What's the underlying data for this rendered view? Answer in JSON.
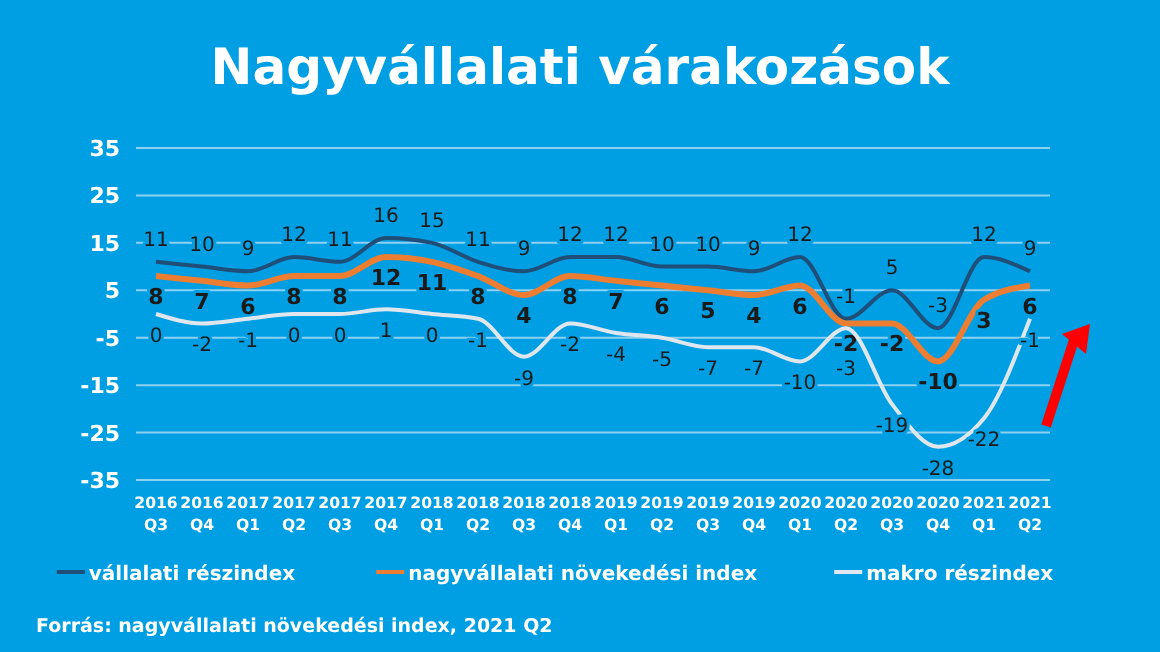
{
  "chart_data": {
    "type": "line",
    "title": "Nagyvállalati várakozások",
    "categories": [
      "2016\nQ3",
      "2016\nQ4",
      "2017\nQ1",
      "2017\nQ2",
      "2017\nQ3",
      "2017\nQ4",
      "2018\nQ1",
      "2018\nQ2",
      "2018\nQ3",
      "2018\nQ4",
      "2019\nQ1",
      "2019\nQ2",
      "2019\nQ3",
      "2019\nQ4",
      "2020\nQ1",
      "2020\nQ2",
      "2020\nQ3",
      "2020\nQ4",
      "2021\nQ1",
      "2021\nQ2"
    ],
    "series": [
      {
        "name": "vállalati részindex",
        "color": "#1f4e79",
        "values": [
          11,
          10,
          9,
          12,
          11,
          16,
          15,
          11,
          9,
          12,
          12,
          10,
          10,
          9,
          12,
          -1,
          5,
          -3,
          12,
          9
        ]
      },
      {
        "name": "nagyvállalati növekedési index",
        "color": "#ed7d31",
        "values": [
          8,
          7,
          6,
          8,
          8,
          12,
          11,
          8,
          4,
          8,
          7,
          6,
          5,
          4,
          6,
          -2,
          -2,
          -10,
          3,
          6
        ]
      },
      {
        "name": "makro részindex",
        "color": "#dfe6ee",
        "values": [
          0,
          -2,
          -1,
          0,
          0,
          1,
          0,
          -1,
          -9,
          -2,
          -4,
          -5,
          -7,
          -7,
          -10,
          -3,
          -19,
          -28,
          -22,
          -1
        ]
      }
    ],
    "ylim": [
      -35,
      35
    ],
    "yticks": [
      -35,
      -25,
      -15,
      -5,
      5,
      15,
      25,
      35
    ],
    "grid": "y",
    "legend": "bottom",
    "data_labels": true,
    "marker": "none",
    "annotations": [
      "Forrás: nagyvállalati növekedési index, 2021 Q2"
    ]
  }
}
